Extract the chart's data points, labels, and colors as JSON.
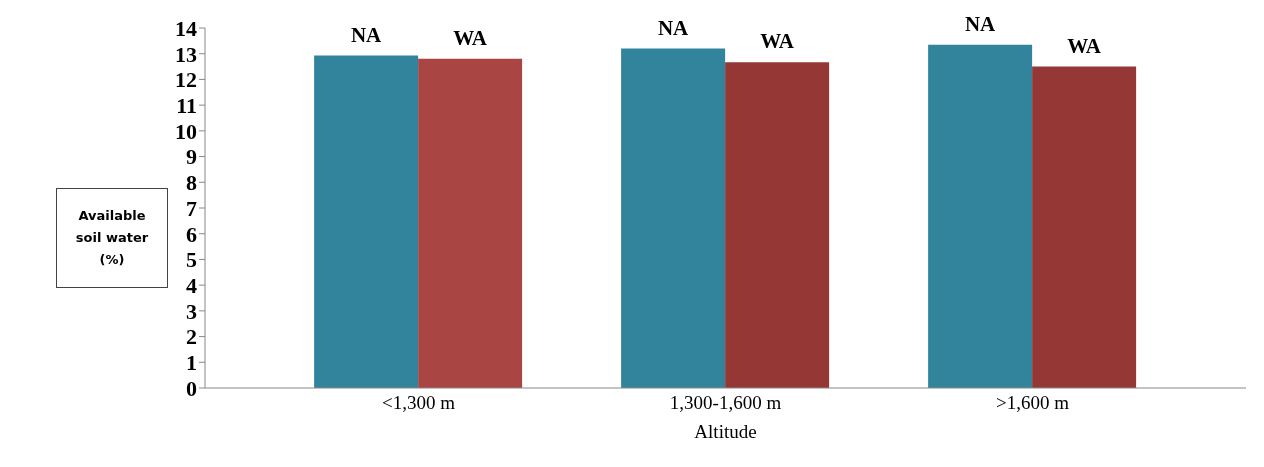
{
  "chart_data": {
    "type": "bar",
    "xlabel": "Altitude",
    "ylabel": "Available soil water (%)",
    "categories": [
      "<1,300  m",
      "1,300-1,600 m",
      ">1,600 m"
    ],
    "series": [
      {
        "name": "NA",
        "color": "#31849b",
        "values": [
          12.93,
          13.2,
          13.35
        ]
      },
      {
        "name": "WA",
        "color": "#953735",
        "colors": [
          "#a94543",
          "#953735",
          "#953735"
        ],
        "values": [
          12.8,
          12.67,
          12.5
        ]
      }
    ],
    "ylim": [
      0,
      14
    ],
    "yticks": [
      0,
      1,
      2,
      3,
      4,
      5,
      6,
      7,
      8,
      9,
      10,
      11,
      12,
      13,
      14
    ],
    "grid": false,
    "legend": false
  }
}
